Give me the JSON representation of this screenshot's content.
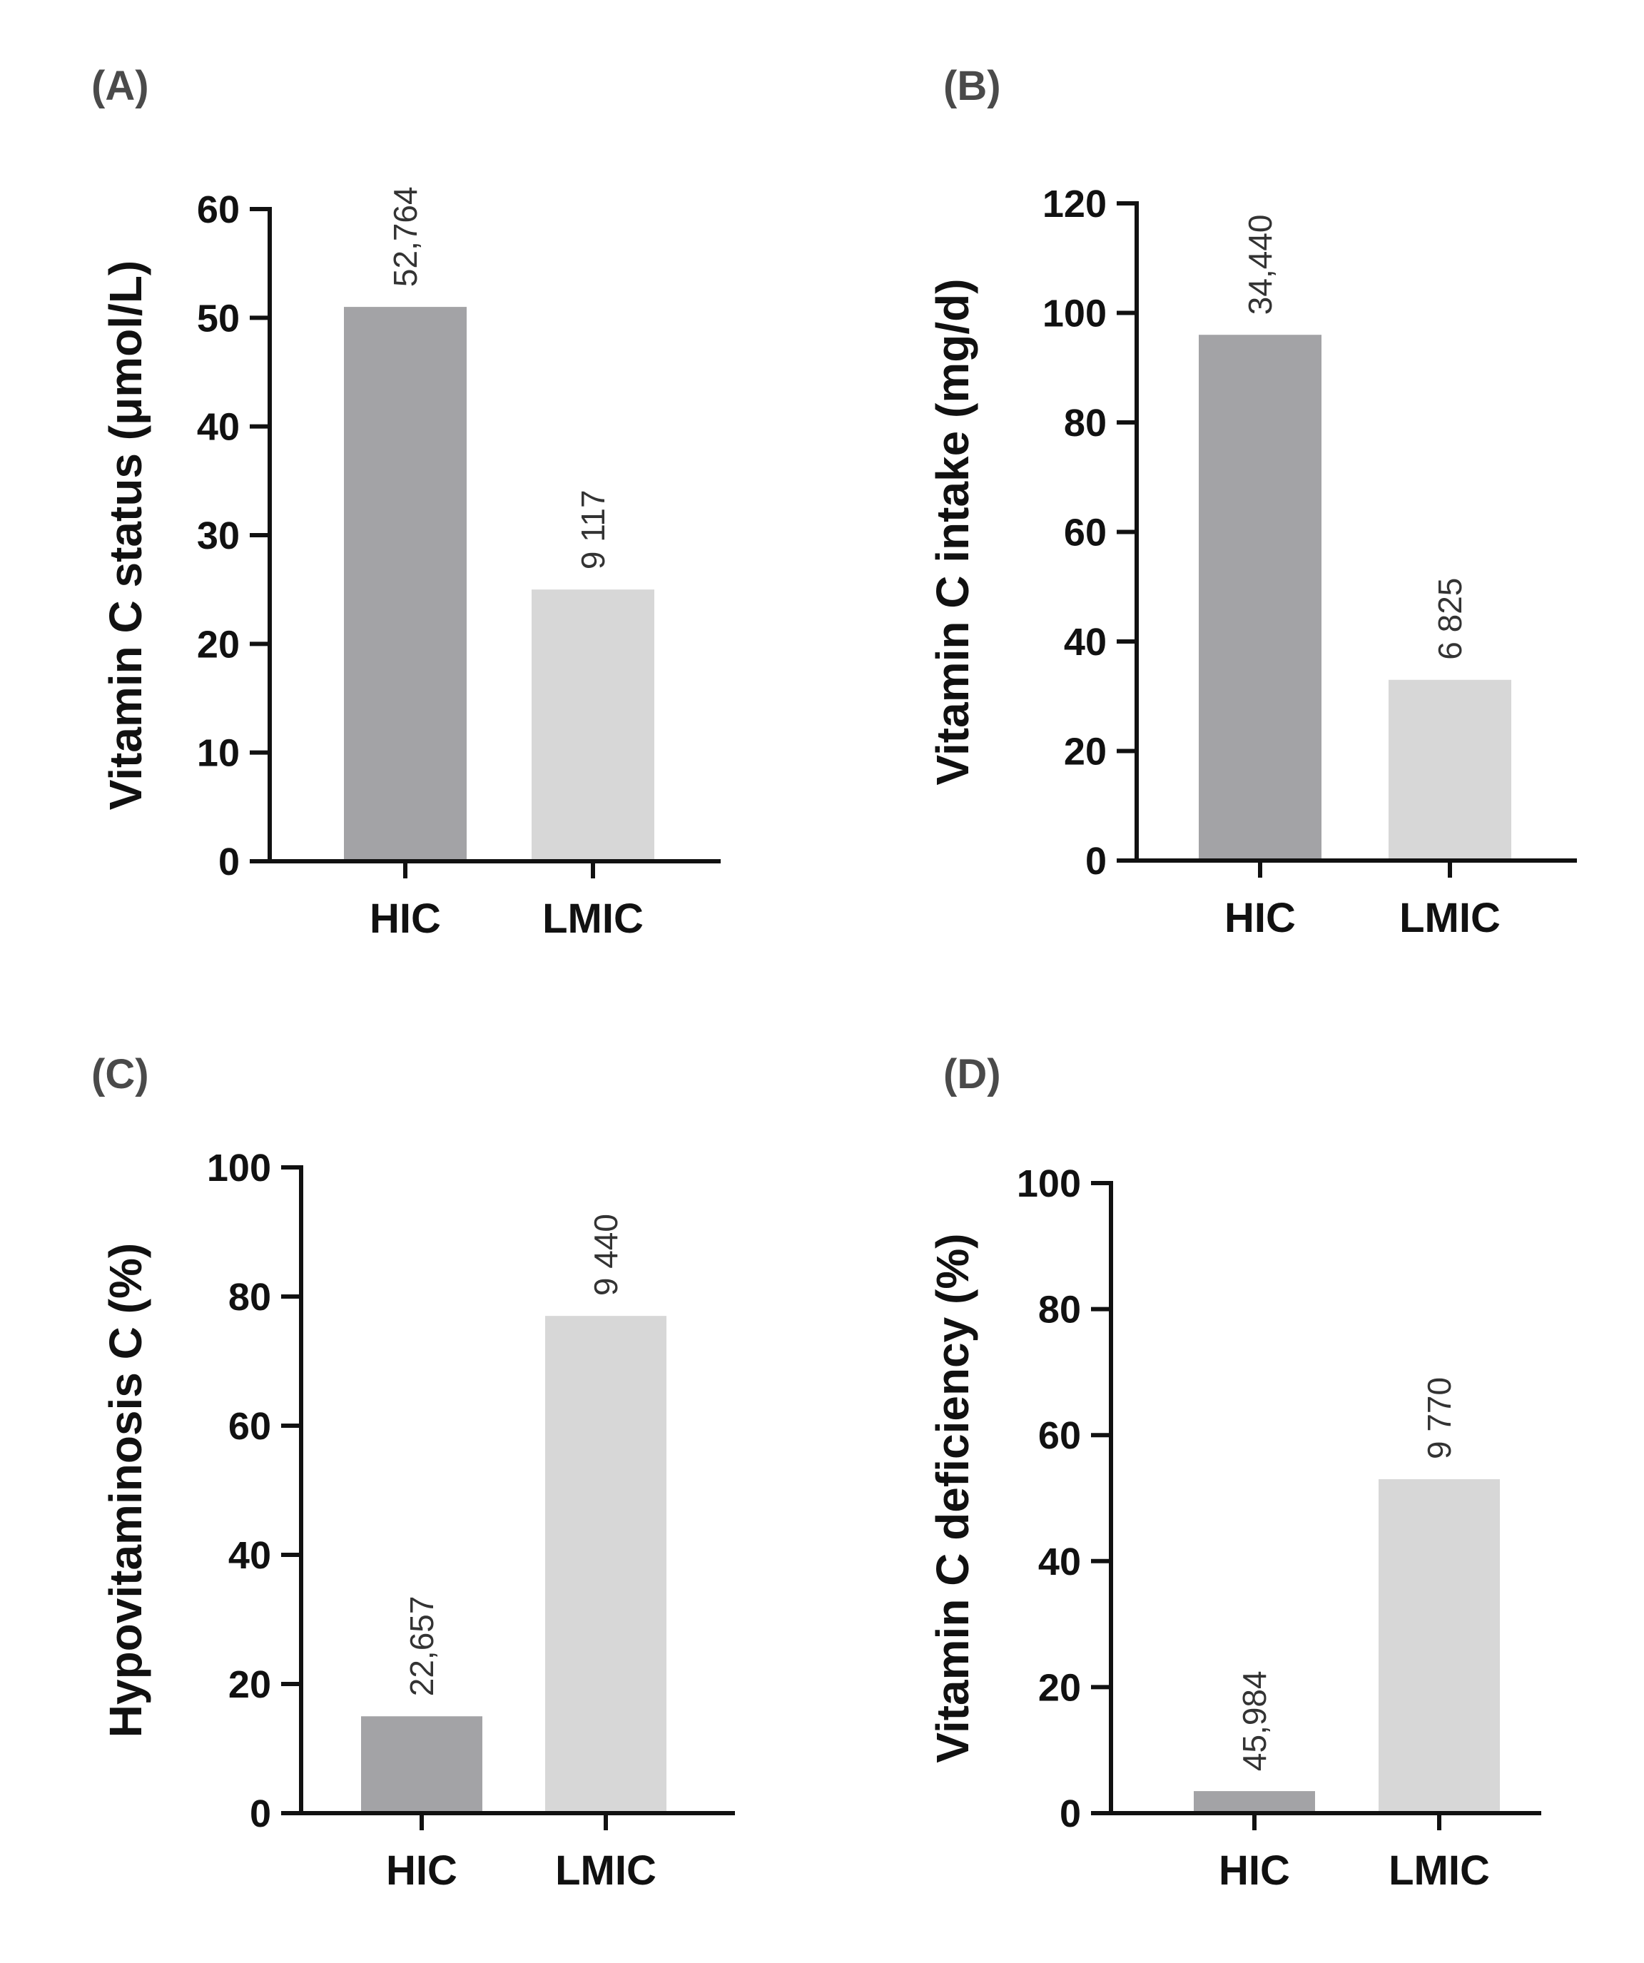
{
  "colors": {
    "hic_bar": "#a3a3a6",
    "lmic_bar": "#d7d7d7",
    "axis": "#111111"
  },
  "chart_data": [
    {
      "panel": "(A)",
      "type": "bar",
      "categories": [
        "HIC",
        "LMIC"
      ],
      "values": [
        51,
        25
      ],
      "data_labels": [
        "52,764",
        "9 117"
      ],
      "ylabel": "Vitamin C status (μmol/L)",
      "ylim": [
        0,
        60
      ],
      "yticks": [
        0,
        10,
        20,
        30,
        40,
        50,
        60
      ]
    },
    {
      "panel": "(B)",
      "type": "bar",
      "categories": [
        "HIC",
        "LMIC"
      ],
      "values": [
        96,
        33
      ],
      "data_labels": [
        "34,440",
        "6 825"
      ],
      "ylabel": "Vitamin C intake (mg/d)",
      "ylim": [
        0,
        120
      ],
      "yticks": [
        0,
        20,
        40,
        60,
        80,
        100,
        120
      ]
    },
    {
      "panel": "(C)",
      "type": "bar",
      "categories": [
        "HIC",
        "LMIC"
      ],
      "values": [
        15,
        77
      ],
      "data_labels": [
        "22,657",
        "9 440"
      ],
      "ylabel": "Hypovitaminosis C (%)",
      "ylim": [
        0,
        100
      ],
      "yticks": [
        0,
        20,
        40,
        60,
        80,
        100
      ]
    },
    {
      "panel": "(D)",
      "type": "bar",
      "categories": [
        "HIC",
        "LMIC"
      ],
      "values": [
        3.5,
        53
      ],
      "data_labels": [
        "45,984",
        "9 770"
      ],
      "ylabel": "Vitamin C deficiency (%)",
      "ylim": [
        0,
        100
      ],
      "yticks": [
        0,
        20,
        40,
        60,
        80,
        100
      ]
    }
  ]
}
